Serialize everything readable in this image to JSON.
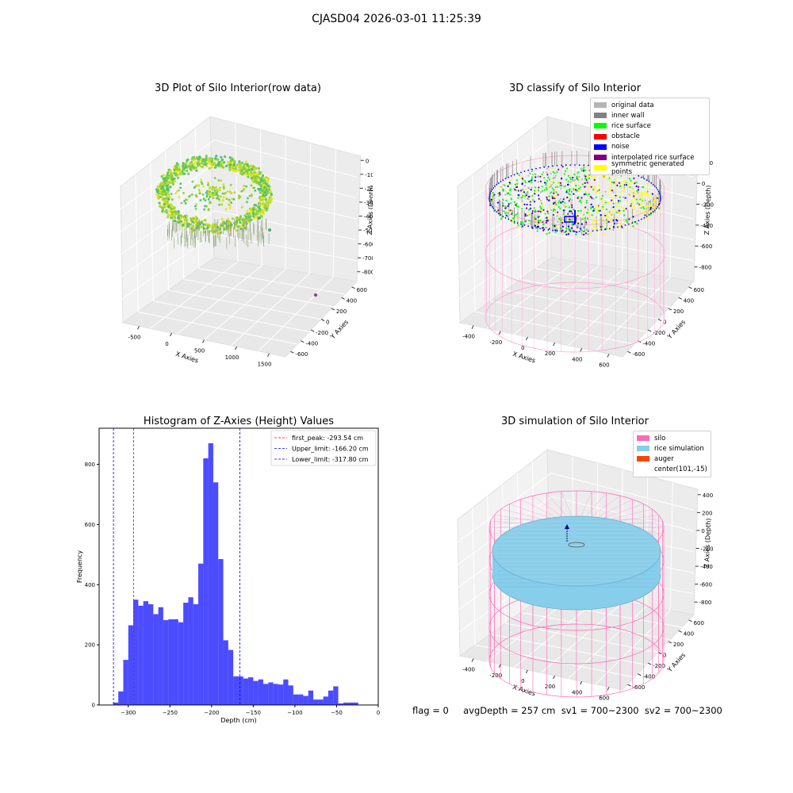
{
  "page": {
    "title": "CJASD04 2026-03-01 11:25:39",
    "status_line": "flag = 0     avgDepth = 257 cm  sv1 = 700~2300  sv2 = 700~2300"
  },
  "panels": {
    "raw": {
      "title": "3D Plot of Silo Interior(row data)",
      "xlabel": "X Axies",
      "ylabel": "Y Axies",
      "zlabel": "Z Axies (Depth)",
      "x_ticks": [
        "-500",
        "0",
        "500",
        "1000",
        "1500"
      ],
      "y_ticks": [
        "-600",
        "-400",
        "-200",
        "0",
        "200",
        "400",
        "600"
      ],
      "z_ticks": [
        "0",
        "-100",
        "-200",
        "-300",
        "-400",
        "-500",
        "-600",
        "-700",
        "-800"
      ]
    },
    "classify": {
      "title": "3D classify of Silo Interior",
      "xlabel": "X Axies",
      "ylabel": "Y Axies",
      "zlabel": "Z Axies (Depth)",
      "x_ticks": [
        "-400",
        "-200",
        "0",
        "200",
        "400",
        "600"
      ],
      "y_ticks": [
        "-600",
        "-400",
        "-200",
        "0",
        "200",
        "400",
        "600"
      ],
      "z_ticks": [
        "200",
        "0",
        "-200",
        "-400",
        "-600",
        "-800"
      ],
      "z_ticks_top": "400",
      "legend": [
        {
          "label": "original data",
          "color": "#b4b4b4"
        },
        {
          "label": "inner wall",
          "color": "#808080"
        },
        {
          "label": "rice surface",
          "color": "#00ff00"
        },
        {
          "label": "obstacle",
          "color": "#ff0000"
        },
        {
          "label": "noise",
          "color": "#0000ff"
        },
        {
          "label": "interpolated rice surface",
          "color": "#800080"
        },
        {
          "label": "symmetric generated points",
          "color": "#ffff00"
        }
      ]
    },
    "histogram": {
      "title": "Histogram of Z-Axies (Height) Values"
    },
    "simulation": {
      "title": "3D simulation of Silo Interior",
      "xlabel": "X Axies",
      "ylabel": "Y Axies",
      "zlabel": "Z Axies (Depth)",
      "x_ticks": [
        "-400",
        "-200",
        "0",
        "200",
        "400",
        "600"
      ],
      "y_ticks": [
        "-600",
        "-400",
        "-200",
        "0",
        "200",
        "400",
        "600"
      ],
      "z_ticks": [
        "400",
        "200",
        "0",
        "-200",
        "-400",
        "-600",
        "-800"
      ],
      "legend": [
        {
          "label": "silo",
          "color": "#ff69b4"
        },
        {
          "label": "rice simulation",
          "color": "#87ceeb"
        },
        {
          "label": "auger",
          "color": "#ff4500"
        },
        {
          "label": "center(101,-15)",
          "color": ""
        }
      ]
    }
  },
  "chart_data": [
    {
      "type": "histogram",
      "title": "Histogram of Z-Axies (Height) Values",
      "xlabel": "Depth (cm)",
      "ylabel": "Frequency",
      "xlim": [
        -335,
        0
      ],
      "ylim": [
        0,
        920
      ],
      "x_ticks": [
        -300,
        -250,
        -200,
        -150,
        -100,
        -50,
        0
      ],
      "y_ticks": [
        0,
        200,
        400,
        600,
        800
      ],
      "bin_start": -318,
      "bin_width": 6,
      "counts": [
        8,
        45,
        150,
        265,
        350,
        330,
        345,
        335,
        302,
        325,
        282,
        285,
        285,
        275,
        340,
        358,
        335,
        470,
        820,
        870,
        740,
        485,
        215,
        183,
        95,
        95,
        88,
        92,
        80,
        85,
        70,
        75,
        70,
        68,
        85,
        65,
        35,
        35,
        30,
        48,
        18,
        18,
        28,
        48,
        62,
        5,
        8,
        8,
        8
      ],
      "bar_color": "#0000ff",
      "lines": [
        {
          "label": "first_peak: -293.54 cm",
          "x": -293.54,
          "color": "#ff0000"
        },
        {
          "label": "Upper_limit: -166.20 cm",
          "x": -166.2,
          "color": "#0000cc"
        },
        {
          "label": "Lower_limit: -317.80 cm",
          "x": -317.8,
          "color": "#0000cc"
        }
      ],
      "legend_position": "upper right"
    }
  ]
}
